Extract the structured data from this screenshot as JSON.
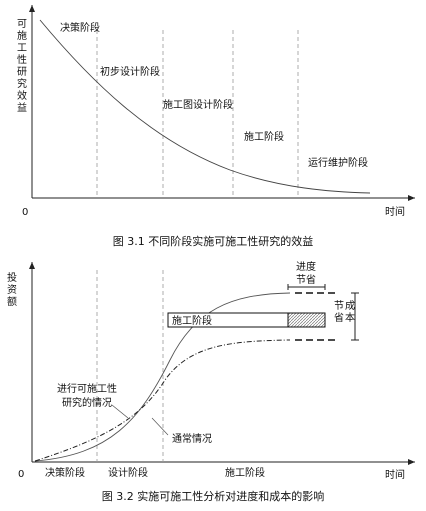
{
  "figure1": {
    "y_label": "可施工性研究效益",
    "origin": "0",
    "x_label": "时间",
    "stages": [
      "决策阶段",
      "初步设计阶段",
      "施工图设计阶段",
      "施工阶段",
      "运行维护阶段"
    ],
    "caption": "图 3.1   不同阶段实施可施工性研究的效益"
  },
  "figure2": {
    "y_label": "投资额",
    "origin": "0",
    "x_label": "时间",
    "stages": [
      "决策阶段",
      "设计阶段",
      "施工阶段"
    ],
    "bar_label": "施工阶段",
    "schedule_saving": [
      "进度",
      "节省"
    ],
    "cost_saving": [
      "成本",
      "节省"
    ],
    "study_case": [
      "进行可施工性",
      "研究的情况"
    ],
    "normal_case": "通常情况",
    "caption": "图 3.2   实施可施工性分析对进度和成本的影响"
  }
}
